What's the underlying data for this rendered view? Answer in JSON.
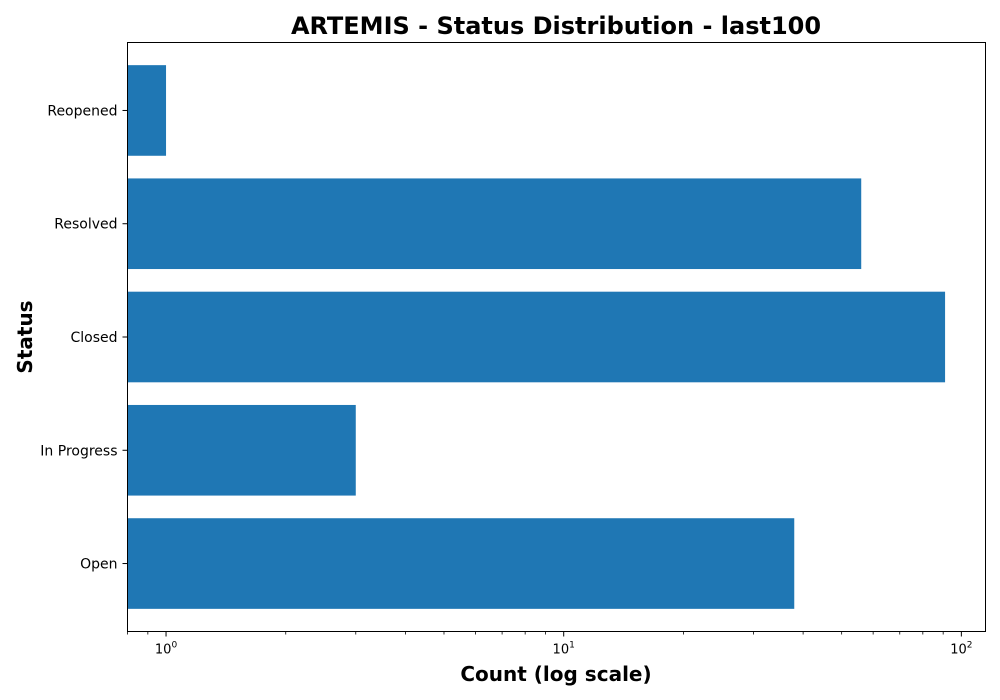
{
  "chart_data": {
    "type": "bar",
    "orientation": "horizontal",
    "title": "ARTEMIS - Status Distribution - last100",
    "xlabel": "Count (log scale)",
    "ylabel": "Status",
    "x_scale": "log",
    "xlim": [
      0.8,
      115
    ],
    "categories": [
      "Open",
      "In Progress",
      "Closed",
      "Resolved",
      "Reopened"
    ],
    "values": [
      38,
      3,
      91,
      56,
      1
    ],
    "x_ticks": [
      {
        "value": 1,
        "base": "10",
        "exp": "0"
      },
      {
        "value": 10,
        "base": "10",
        "exp": "1"
      },
      {
        "value": 100,
        "base": "10",
        "exp": "2"
      }
    ],
    "bar_color": "#1f77b4",
    "grid": false,
    "legend": "none"
  }
}
